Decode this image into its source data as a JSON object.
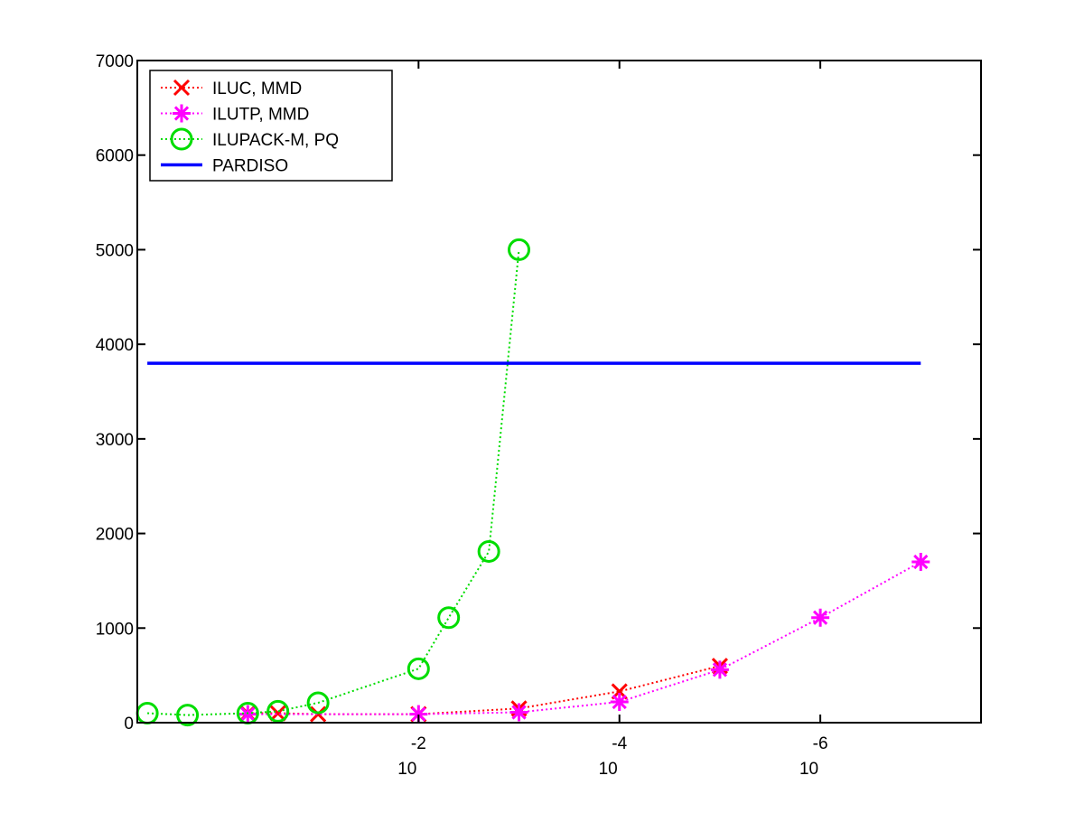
{
  "chart_data": {
    "type": "line",
    "x_scale": "log-reversed",
    "x_axis": {
      "min_exponent": 0.8,
      "max_exponent": -7.6,
      "ticks": [
        {
          "exponent": -2,
          "base": "10",
          "exp": "-2"
        },
        {
          "exponent": -4,
          "base": "10",
          "exp": "-4"
        },
        {
          "exponent": -6,
          "base": "10",
          "exp": "-6"
        }
      ]
    },
    "y_axis": {
      "ylim": [
        0,
        7000
      ],
      "ticks": [
        0,
        1000,
        2000,
        3000,
        4000,
        5000,
        6000,
        7000
      ],
      "tick_labels": [
        "0",
        "1000",
        "2000",
        "3000",
        "4000",
        "5000",
        "6000",
        "7000"
      ]
    },
    "grid": false,
    "legend_position": "top-left",
    "series": [
      {
        "name": "ILUC, MMD",
        "color": "#ff0000",
        "marker": "x",
        "line_style": "dotted",
        "points": [
          {
            "x": -0.3,
            "y": 100
          },
          {
            "x": -0.6,
            "y": 100
          },
          {
            "x": -1.0,
            "y": 90
          },
          {
            "x": -2.0,
            "y": 90
          },
          {
            "x": -3.0,
            "y": 150
          },
          {
            "x": -4.0,
            "y": 330
          },
          {
            "x": -5.0,
            "y": 600
          }
        ]
      },
      {
        "name": "ILUTP, MMD",
        "color": "#ff00ff",
        "marker": "asterisk",
        "line_style": "dotted",
        "points": [
          {
            "x": -0.3,
            "y": 90
          },
          {
            "x": -2.0,
            "y": 90
          },
          {
            "x": -3.0,
            "y": 110
          },
          {
            "x": -4.0,
            "y": 220
          },
          {
            "x": -5.0,
            "y": 560
          },
          {
            "x": -6.0,
            "y": 1110
          },
          {
            "x": -7.0,
            "y": 1700
          }
        ]
      },
      {
        "name": "ILUPACK-M, PQ",
        "color": "#00dd00",
        "marker": "circle",
        "line_style": "dotted",
        "points": [
          {
            "x": 0.7,
            "y": 100
          },
          {
            "x": 0.3,
            "y": 80
          },
          {
            "x": -0.3,
            "y": 100
          },
          {
            "x": -0.6,
            "y": 120
          },
          {
            "x": -1.0,
            "y": 210
          },
          {
            "x": -2.0,
            "y": 570
          },
          {
            "x": -2.3,
            "y": 1110
          },
          {
            "x": -2.7,
            "y": 1810
          },
          {
            "x": -3.0,
            "y": 5000
          }
        ]
      },
      {
        "name": "PARDISO",
        "color": "#0000ff",
        "marker": "none",
        "line_style": "solid",
        "points": [
          {
            "x": 0.7,
            "y": 3800
          },
          {
            "x": -7.0,
            "y": 3800
          }
        ]
      }
    ]
  }
}
